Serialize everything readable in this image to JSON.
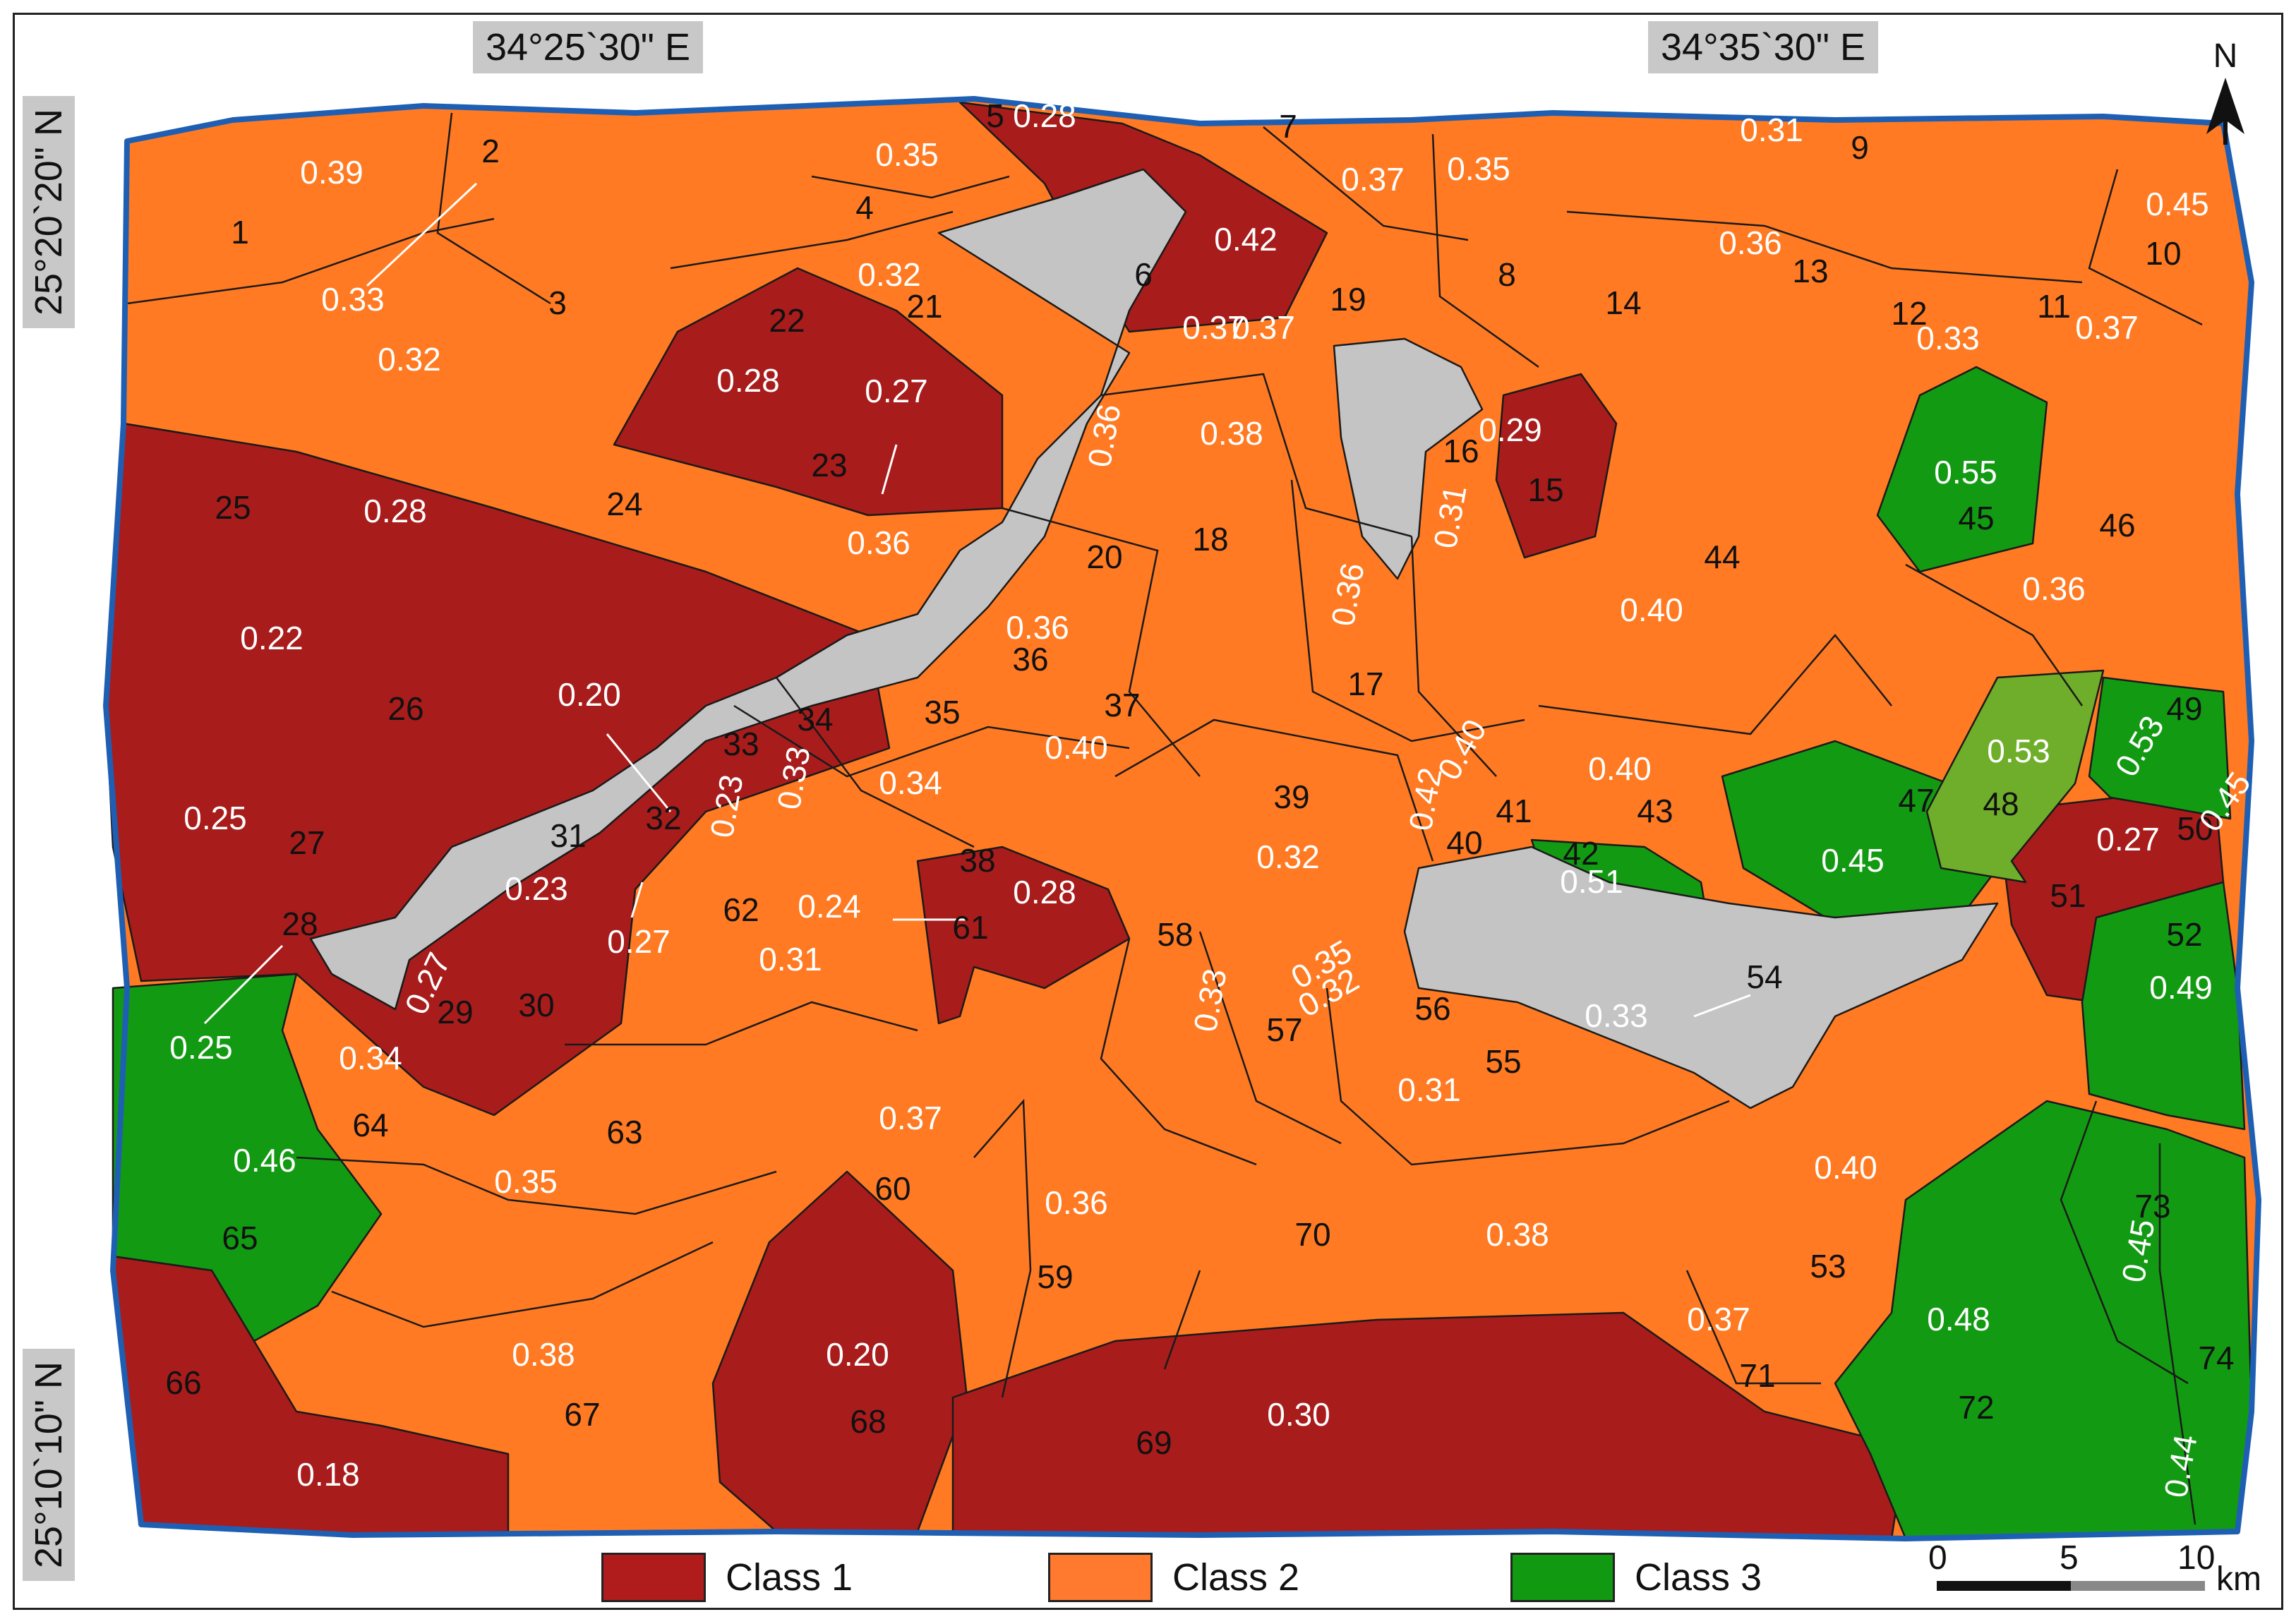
{
  "coordinates": {
    "top_left": "34°25`30\" E",
    "top_right": "34°35`30\" E",
    "left_upper": "25°20`20\" N",
    "left_lower": "25°10`10\" N"
  },
  "north_arrow": {
    "label": "N",
    "icon": "north-arrow-icon"
  },
  "legend": [
    {
      "label": "Class 1",
      "color": "#b01c1c"
    },
    {
      "label": "Class 2",
      "color": "#ff7a2e"
    },
    {
      "label": "Class 3",
      "color": "#119911"
    }
  ],
  "scale_bar": {
    "labels": [
      "0",
      "5",
      "10"
    ],
    "unit": "km"
  },
  "colors": {
    "class1": "#a81c1c",
    "class2": "#ff7a22",
    "class3": "#139a13",
    "class3_light": "#6fae2a",
    "relief": "#bdbdbd",
    "outline": "#1e5fb3"
  },
  "basin_ids": [
    "1",
    "2",
    "3",
    "4",
    "5",
    "6",
    "7",
    "8",
    "9",
    "10",
    "11",
    "12",
    "13",
    "14",
    "15",
    "16",
    "17",
    "18",
    "19",
    "20",
    "21",
    "22",
    "23",
    "24",
    "25",
    "26",
    "27",
    "28",
    "29",
    "30",
    "31",
    "32",
    "33",
    "34",
    "35",
    "36",
    "37",
    "38",
    "39",
    "40",
    "41",
    "42",
    "43",
    "44",
    "45",
    "46",
    "47",
    "48",
    "49",
    "50",
    "51",
    "52",
    "53",
    "54",
    "55",
    "56",
    "57",
    "58",
    "59",
    "60",
    "61",
    "62",
    "63",
    "64",
    "65",
    "66",
    "67",
    "68",
    "69",
    "70",
    "71",
    "72",
    "73",
    "74"
  ],
  "values": [
    "0.39",
    "0.33",
    "0.32",
    "0.35",
    "0.28",
    "0.42",
    "0.37",
    "0.35",
    "0.31",
    "0.45",
    "0.37",
    "0.33",
    "0.36",
    "0.37",
    "0.29",
    "0.31",
    "0.36",
    "0.38",
    "0.37",
    "0.36",
    "0.32",
    "0.28",
    "0.27",
    "0.36",
    "0.28",
    "0.22",
    "0.25",
    "0.25",
    "0.27",
    "0.23",
    "0.27",
    "0.20",
    "0.23",
    "0.33",
    "0.34",
    "0.36",
    "0.40",
    "0.28",
    "0.32",
    "0.42",
    "0.40",
    "0.51",
    "0.40",
    "0.40",
    "0.55",
    "0.36",
    "0.45",
    "0.53",
    "0.53",
    "0.45",
    "0.27",
    "0.49",
    "0.40",
    "0.33",
    "0.31",
    "0.32",
    "0.35",
    "0.33",
    "0.36",
    "0.37",
    "0.24",
    "0.31",
    "0.35",
    "0.34",
    "0.46",
    "0.18",
    "0.38",
    "0.20",
    "0.30",
    "0.38",
    "0.37",
    "0.48",
    "0.45",
    "0.44"
  ]
}
